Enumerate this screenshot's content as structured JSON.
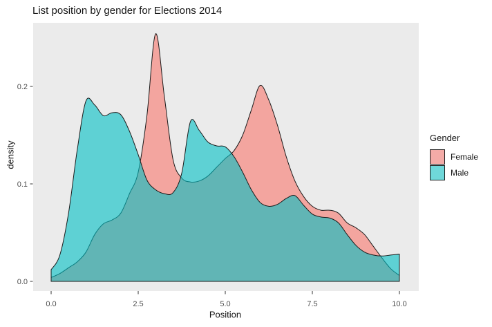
{
  "chart": {
    "title": "List position by gender for Elections 2014",
    "xlabel": "Position",
    "ylabel": "density",
    "legend": {
      "title": "Gender",
      "entries": [
        {
          "label": "Female",
          "color": "#F4ABA7"
        },
        {
          "label": "Male",
          "color": "#6FD8DA"
        }
      ]
    }
  },
  "chart_data": {
    "type": "area",
    "subtype": "overlapping-density",
    "title": "List position by gender for Elections 2014",
    "xlabel": "Position",
    "ylabel": "density",
    "xlim": [
      0,
      10
    ],
    "ylim": [
      0,
      0.265
    ],
    "grid": false,
    "legend_position": "right",
    "panel_bg": "#EBEBEB",
    "outline": "#1A1A1A",
    "x_ticks": {
      "values": [
        0,
        2.5,
        5,
        7.5,
        10
      ],
      "labels": [
        "0.0",
        "2.5",
        "5.0",
        "7.5",
        "10.0"
      ]
    },
    "y_ticks": {
      "values": [
        0,
        0.1,
        0.2
      ],
      "labels": [
        "0.0",
        "0.1",
        "0.2"
      ]
    },
    "x": [
      0,
      0.25,
      0.5,
      0.75,
      1,
      1.25,
      1.5,
      1.75,
      2,
      2.25,
      2.5,
      2.75,
      3,
      3.25,
      3.5,
      3.75,
      4,
      4.25,
      4.5,
      4.75,
      5,
      5.25,
      5.5,
      5.75,
      6,
      6.25,
      6.5,
      6.75,
      7,
      7.25,
      7.5,
      7.75,
      8,
      8.25,
      8.5,
      8.75,
      9,
      9.25,
      9.5,
      9.75,
      10
    ],
    "series": [
      {
        "name": "Female",
        "fill": "#F8766D",
        "opacity": 0.6,
        "values": [
          0.004,
          0.008,
          0.014,
          0.02,
          0.03,
          0.048,
          0.059,
          0.063,
          0.07,
          0.09,
          0.112,
          0.17,
          0.254,
          0.19,
          0.125,
          0.106,
          0.102,
          0.103,
          0.108,
          0.117,
          0.126,
          0.134,
          0.15,
          0.176,
          0.201,
          0.186,
          0.16,
          0.128,
          0.103,
          0.087,
          0.077,
          0.073,
          0.073,
          0.07,
          0.06,
          0.055,
          0.048,
          0.036,
          0.024,
          0.013,
          0.006
        ]
      },
      {
        "name": "Male",
        "fill": "#00BFC4",
        "opacity": 0.6,
        "values": [
          0.012,
          0.027,
          0.07,
          0.135,
          0.185,
          0.181,
          0.17,
          0.173,
          0.171,
          0.154,
          0.13,
          0.104,
          0.094,
          0.09,
          0.091,
          0.111,
          0.164,
          0.155,
          0.143,
          0.139,
          0.138,
          0.128,
          0.112,
          0.094,
          0.081,
          0.077,
          0.079,
          0.085,
          0.088,
          0.078,
          0.069,
          0.066,
          0.065,
          0.06,
          0.048,
          0.037,
          0.03,
          0.027,
          0.026,
          0.027,
          0.028
        ]
      }
    ]
  }
}
